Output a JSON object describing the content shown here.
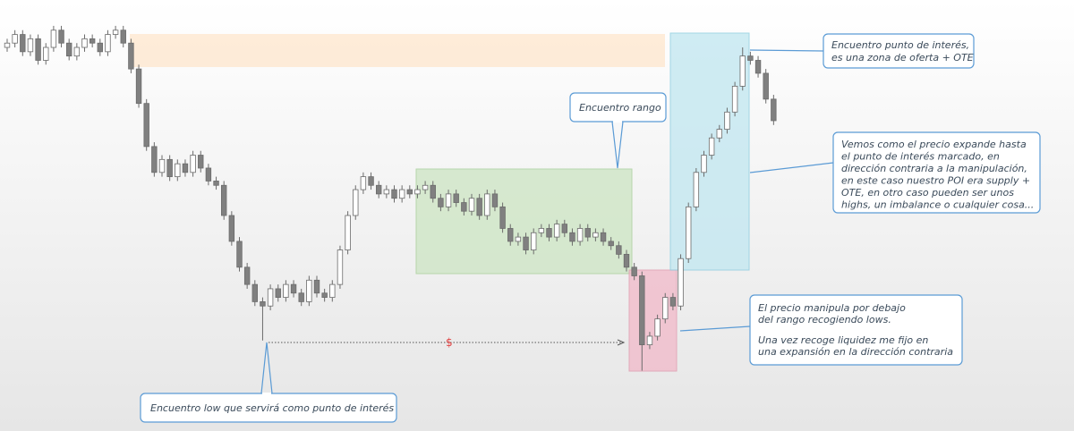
{
  "chart_data": {
    "type": "candlestick",
    "ylim": [
      0,
      100
    ],
    "open": [
      89,
      90,
      92,
      88,
      91,
      86,
      89,
      93,
      90,
      87,
      89,
      91,
      90,
      88,
      92,
      93,
      90,
      84,
      76,
      66,
      60,
      63,
      59,
      62,
      60,
      64,
      61,
      58,
      57,
      50,
      44,
      38,
      34,
      30,
      29,
      33,
      31,
      34,
      32,
      30,
      35,
      32,
      31,
      34,
      42,
      50,
      56,
      59,
      57,
      55,
      56,
      54,
      56,
      55,
      56,
      57,
      54,
      52,
      55,
      53,
      51,
      54,
      50,
      55,
      52,
      47,
      44,
      45,
      42,
      46,
      47,
      45,
      48,
      46,
      44,
      47,
      45,
      46,
      44,
      43,
      41,
      38,
      36,
      20,
      22,
      26,
      31,
      29,
      40,
      52,
      60,
      64,
      68,
      70,
      74,
      80,
      87,
      86,
      83,
      77
    ],
    "high": [
      91,
      93,
      93,
      92,
      92,
      90,
      94,
      94,
      91,
      90,
      92,
      92,
      91,
      93,
      94,
      94,
      91,
      85,
      77,
      67,
      64,
      64,
      63,
      63,
      65,
      65,
      62,
      59,
      58,
      51,
      45,
      39,
      35,
      31,
      34,
      34,
      35,
      35,
      33,
      36,
      36,
      33,
      35,
      43,
      51,
      57,
      60,
      60,
      58,
      57,
      57,
      57,
      57,
      57,
      58,
      58,
      55,
      56,
      56,
      54,
      55,
      55,
      56,
      56,
      53,
      48,
      46,
      46,
      47,
      48,
      48,
      49,
      49,
      47,
      48,
      48,
      47,
      47,
      45,
      44,
      42,
      39,
      37,
      23,
      27,
      32,
      32,
      41,
      53,
      61,
      65,
      69,
      71,
      75,
      81,
      89,
      88,
      87,
      84,
      78
    ],
    "low": [
      88,
      89,
      87,
      87,
      85,
      85,
      88,
      89,
      86,
      86,
      88,
      89,
      87,
      87,
      91,
      89,
      83,
      75,
      65,
      59,
      59,
      58,
      58,
      59,
      59,
      60,
      57,
      56,
      49,
      43,
      37,
      33,
      29,
      21,
      28,
      30,
      30,
      31,
      29,
      29,
      31,
      30,
      30,
      33,
      41,
      49,
      55,
      56,
      54,
      54,
      53,
      53,
      54,
      54,
      55,
      53,
      51,
      51,
      52,
      50,
      50,
      49,
      49,
      51,
      46,
      43,
      43,
      41,
      41,
      45,
      44,
      44,
      45,
      43,
      43,
      44,
      44,
      43,
      42,
      40,
      37,
      35,
      14,
      19,
      21,
      25,
      28,
      28,
      39,
      51,
      59,
      63,
      67,
      69,
      73,
      79,
      85,
      82,
      76,
      71
    ],
    "close": [
      90,
      92,
      88,
      91,
      86,
      89,
      93,
      90,
      87,
      89,
      91,
      90,
      88,
      92,
      93,
      90,
      84,
      76,
      66,
      60,
      63,
      59,
      62,
      60,
      64,
      61,
      58,
      57,
      50,
      44,
      38,
      34,
      30,
      29,
      33,
      31,
      34,
      32,
      30,
      35,
      32,
      31,
      34,
      42,
      50,
      56,
      59,
      57,
      55,
      56,
      54,
      56,
      55,
      56,
      57,
      54,
      52,
      55,
      53,
      51,
      54,
      50,
      55,
      52,
      47,
      44,
      45,
      42,
      46,
      47,
      45,
      48,
      46,
      44,
      47,
      45,
      46,
      44,
      43,
      41,
      38,
      36,
      20,
      22,
      26,
      31,
      29,
      40,
      52,
      60,
      64,
      68,
      70,
      74,
      80,
      87,
      86,
      83,
      77,
      72
    ],
    "up_color": "#ffffff",
    "down_color": "#808080",
    "wick_color": "#6b6b6b",
    "annotations": {
      "poi": [
        "Encuentro punto de interés,",
        "es una zona de oferta + OTE"
      ],
      "range": [
        "Encuentro rango"
      ],
      "expansion": [
        "Vemos como el precio expande hasta",
        "el punto de interés marcado, en",
        "dirección contraria a la manipulación,",
        "en este caso nuestro POI era supply +",
        "OTE, en otro caso pueden ser unos",
        "highs, un imbalance o cualquier cosa..."
      ],
      "manipulation": [
        "El precio manipula por debajo",
        "del rango recogiendo lows.",
        "Una vez recoge liquidez me fijo en",
        "una expansión en la dirección contraria"
      ],
      "low": [
        "Encuentro low que servirá como punto de interés"
      ],
      "liquidity": "$"
    }
  }
}
